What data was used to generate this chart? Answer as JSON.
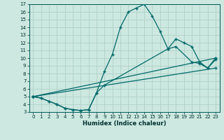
{
  "xlabel": "Humidex (Indice chaleur)",
  "bg_color": "#cce8e0",
  "line_color": "#006868",
  "grid_color": "#aaccc4",
  "ylim": [
    3,
    17
  ],
  "xlim": [
    -0.5,
    23.5
  ],
  "yticks": [
    3,
    4,
    5,
    6,
    7,
    8,
    9,
    10,
    11,
    12,
    13,
    14,
    15,
    16,
    17
  ],
  "xticks": [
    0,
    1,
    2,
    3,
    4,
    5,
    6,
    7,
    8,
    9,
    10,
    11,
    12,
    13,
    14,
    15,
    16,
    17,
    18,
    19,
    20,
    21,
    22,
    23
  ],
  "curve1_x": [
    0,
    1,
    2,
    3,
    4,
    5,
    6,
    7,
    8,
    9,
    10,
    11,
    12,
    13,
    14,
    15,
    16,
    17,
    18,
    19,
    20,
    21,
    22,
    23
  ],
  "curve1_y": [
    5.0,
    4.8,
    4.4,
    4.0,
    3.5,
    3.3,
    3.2,
    3.3,
    5.5,
    8.3,
    10.5,
    14.0,
    16.0,
    16.5,
    17.0,
    15.5,
    13.5,
    11.2,
    12.5,
    12.0,
    11.5,
    9.5,
    8.7,
    10.0
  ],
  "curve2_x": [
    0,
    23
  ],
  "curve2_y": [
    5.0,
    10.0
  ],
  "curve3_x": [
    0,
    23
  ],
  "curve3_y": [
    5.0,
    8.7
  ],
  "curve4_x": [
    0,
    1,
    2,
    3,
    4,
    5,
    6,
    7,
    8,
    9,
    17,
    18,
    20,
    21,
    22,
    23
  ],
  "curve4_y": [
    5.0,
    4.8,
    4.4,
    4.0,
    3.5,
    3.3,
    3.2,
    3.3,
    5.5,
    6.5,
    11.2,
    11.5,
    9.5,
    9.3,
    8.7,
    9.8
  ],
  "marker_size": 2.5,
  "line_width": 0.9
}
